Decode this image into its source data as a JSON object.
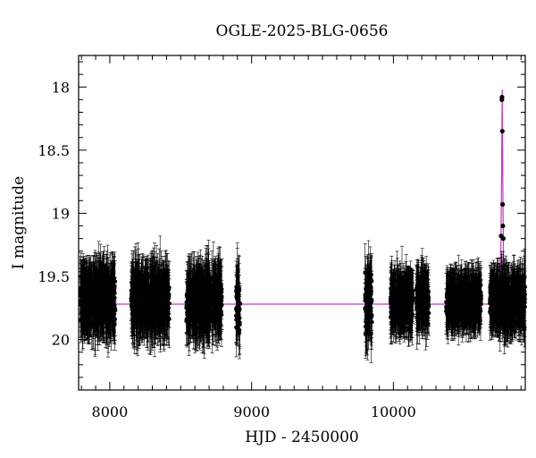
{
  "chart_data": {
    "type": "scatter",
    "title": "OGLE-2025-BLG-0656",
    "xlabel": "HJD - 2450000",
    "ylabel": "I magnitude",
    "xlim": [
      7780,
      10930
    ],
    "ylim": [
      20.4,
      17.75
    ],
    "y_inverted": true,
    "x_ticks": [
      {
        "value": 8000,
        "label": "8000"
      },
      {
        "value": 9000,
        "label": "9000"
      },
      {
        "value": 10000,
        "label": "10000"
      }
    ],
    "y_ticks": [
      {
        "value": 18,
        "label": "18"
      },
      {
        "value": 18.5,
        "label": "18.5"
      },
      {
        "value": 19,
        "label": "19"
      },
      {
        "value": 19.5,
        "label": "19.5"
      },
      {
        "value": 20,
        "label": "20"
      }
    ],
    "grid": false,
    "series": [
      {
        "kind": "observations",
        "color": "#000000",
        "seasons": [
          {
            "x_range": [
              7790,
              8040
            ],
            "mean_mag": 19.68,
            "scatter": 0.17,
            "typical_error": 0.2
          },
          {
            "x_range": [
              8150,
              8420
            ],
            "mean_mag": 19.7,
            "scatter": 0.17,
            "typical_error": 0.2
          },
          {
            "x_range": [
              8540,
              8790
            ],
            "mean_mag": 19.7,
            "scatter": 0.17,
            "typical_error": 0.2
          },
          {
            "x_range": [
              8890,
              8920
            ],
            "mean_mag": 19.72,
            "scatter": 0.2,
            "typical_error": 0.2
          },
          {
            "x_range": [
              9800,
              9850
            ],
            "mean_mag": 19.72,
            "scatter": 0.25,
            "typical_error": 0.2
          },
          {
            "x_range": [
              9980,
              10140
            ],
            "mean_mag": 19.7,
            "scatter": 0.13,
            "typical_error": 0.18
          },
          {
            "x_range": [
              10160,
              10250
            ],
            "mean_mag": 19.68,
            "scatter": 0.13,
            "typical_error": 0.18
          },
          {
            "x_range": [
              10370,
              10620
            ],
            "mean_mag": 19.7,
            "scatter": 0.12,
            "typical_error": 0.17
          },
          {
            "x_range": [
              10680,
              10930
            ],
            "mean_mag": 19.7,
            "scatter": 0.14,
            "typical_error": 0.18
          }
        ],
        "event_points": [
          {
            "x": 10765,
            "y": 18.1
          },
          {
            "x": 10766,
            "y": 18.08
          },
          {
            "x": 10768,
            "y": 18.35
          },
          {
            "x": 10770,
            "y": 18.93
          },
          {
            "x": 10772,
            "y": 19.1
          },
          {
            "x": 10760,
            "y": 19.18
          },
          {
            "x": 10775,
            "y": 19.2
          },
          {
            "x": 10778,
            "y": 19.55
          }
        ]
      },
      {
        "kind": "model",
        "color": "#cc33cc",
        "baseline_mag": 19.72,
        "peak_time": 10767,
        "peak_mag": 18.02,
        "model_points": [
          {
            "x": 7780,
            "y": 19.72
          },
          {
            "x": 10700,
            "y": 19.72
          },
          {
            "x": 10735,
            "y": 19.7
          },
          {
            "x": 10750,
            "y": 19.6
          },
          {
            "x": 10758,
            "y": 19.3
          },
          {
            "x": 10763,
            "y": 18.7
          },
          {
            "x": 10767,
            "y": 18.02
          },
          {
            "x": 10771,
            "y": 18.7
          },
          {
            "x": 10776,
            "y": 19.3
          },
          {
            "x": 10784,
            "y": 19.6
          },
          {
            "x": 10800,
            "y": 19.7
          },
          {
            "x": 10930,
            "y": 19.72
          }
        ]
      }
    ]
  }
}
